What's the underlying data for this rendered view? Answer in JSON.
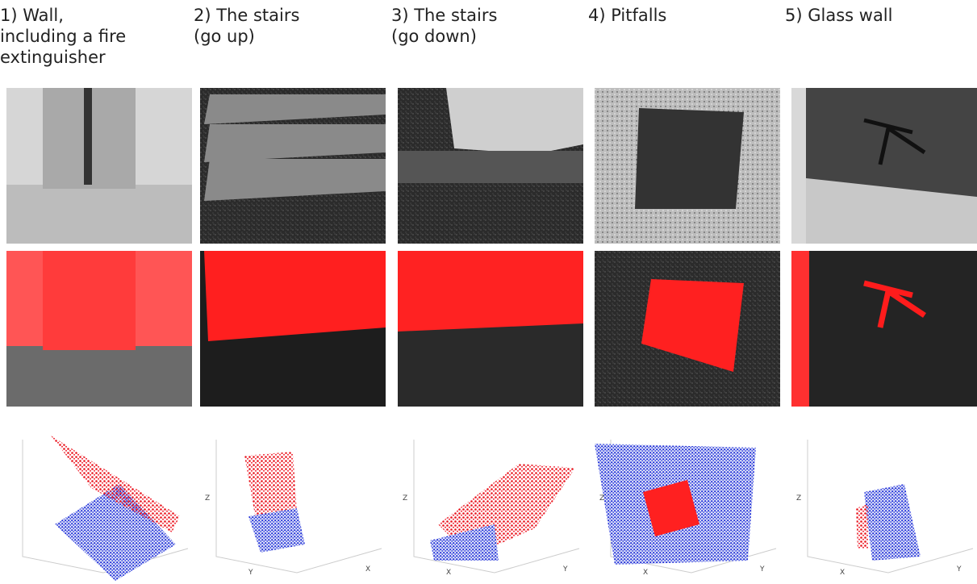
{
  "columns": [
    {
      "title": [
        "1) Wall,",
        "including a fire",
        "extinguisher"
      ],
      "axes": []
    },
    {
      "title": [
        "2) The stairs",
        "(go up)"
      ],
      "axes": [
        "Z",
        "Y",
        "X"
      ]
    },
    {
      "title": [
        "3) The stairs",
        "(go down)"
      ],
      "axes": [
        "Z",
        "X",
        "Y"
      ]
    },
    {
      "title": [
        "4) Pitfalls"
      ],
      "axes": [
        "Z",
        "X",
        "Y"
      ]
    },
    {
      "title": [
        "5) Glass wall"
      ],
      "axes": [
        "Z",
        "X",
        "Y"
      ]
    }
  ]
}
